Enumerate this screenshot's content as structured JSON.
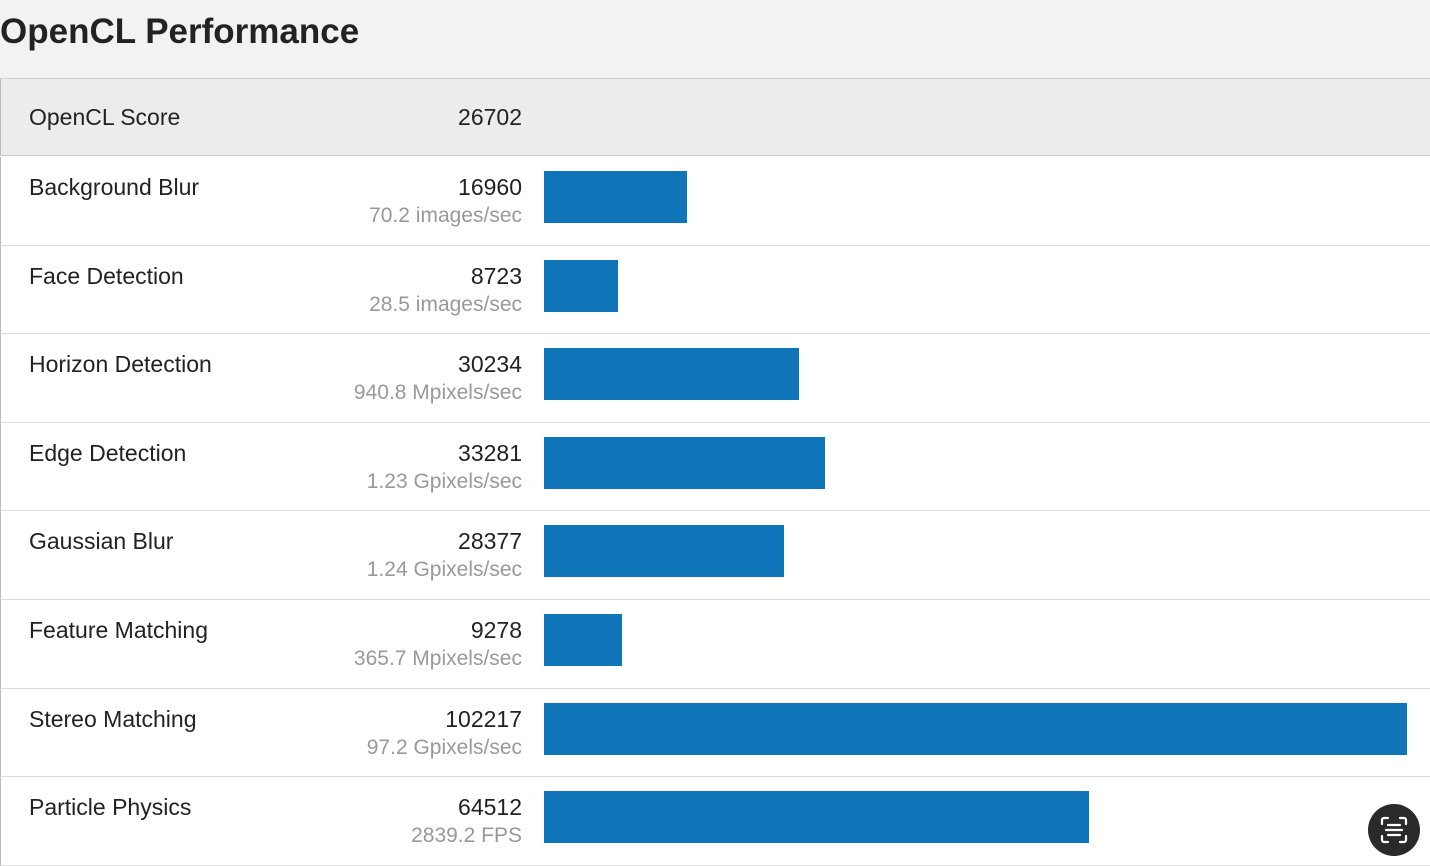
{
  "header": {
    "title": "OpenCL Performance"
  },
  "summary": {
    "label": "OpenCL Score",
    "score": 26702
  },
  "rows": [
    {
      "name": "Background Blur",
      "score": 16960,
      "rate": "70.2 images/sec"
    },
    {
      "name": "Face Detection",
      "score": 8723,
      "rate": "28.5 images/sec"
    },
    {
      "name": "Horizon Detection",
      "score": 30234,
      "rate": "940.8 Mpixels/sec"
    },
    {
      "name": "Edge Detection",
      "score": 33281,
      "rate": "1.23 Gpixels/sec"
    },
    {
      "name": "Gaussian Blur",
      "score": 28377,
      "rate": "1.24 Gpixels/sec"
    },
    {
      "name": "Feature Matching",
      "score": 9278,
      "rate": "365.7 Mpixels/sec"
    },
    {
      "name": "Stereo Matching",
      "score": 102217,
      "rate": "97.2 Gpixels/sec"
    },
    {
      "name": "Particle Physics",
      "score": 64512,
      "rate": "2839.2 FPS"
    }
  ]
}
